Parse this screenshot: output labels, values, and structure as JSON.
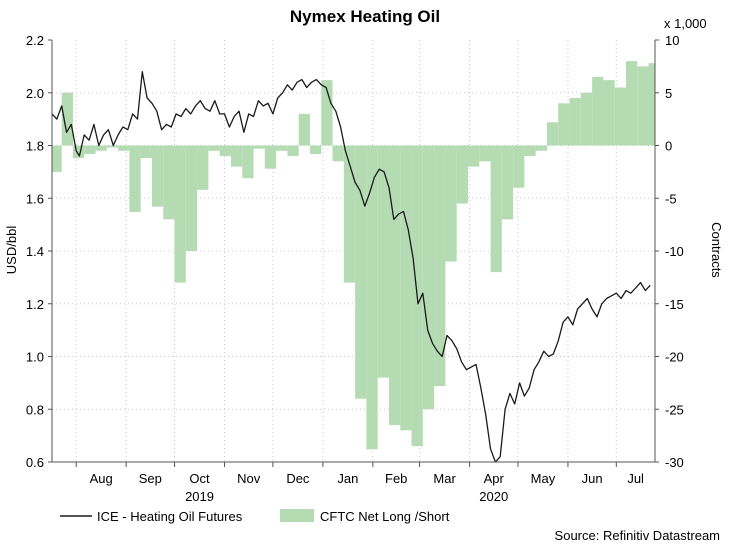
{
  "chart_data": {
    "type": "line",
    "title": "Nymex Heating Oil",
    "source": "Source: Refinitiv Datastream",
    "left_axis": {
      "label": "USD/bbl",
      "range": [
        0.6,
        2.2
      ],
      "ticks": [
        "0.6",
        "0.8",
        "1.0",
        "1.2",
        "1.4",
        "1.6",
        "1.8",
        "2.0",
        "2.2"
      ],
      "tick_values": [
        0.6,
        0.8,
        1.0,
        1.2,
        1.4,
        1.6,
        1.8,
        2.0,
        2.2
      ]
    },
    "right_axis": {
      "label": "Contracts",
      "multiplier_label": "x 1,000",
      "range": [
        -30,
        10
      ],
      "ticks": [
        "-30",
        "-25",
        "-20",
        "-15",
        "-10",
        "-5",
        "0",
        "5",
        "10"
      ],
      "tick_values": [
        -30,
        -25,
        -20,
        -15,
        -10,
        -5,
        0,
        5,
        10
      ]
    },
    "x_axis": {
      "range": [
        "2019-07-17",
        "2020-07-25"
      ],
      "months": [
        {
          "label": "Aug",
          "date": "2019-08"
        },
        {
          "label": "Sep",
          "date": "2019-09"
        },
        {
          "label": "Oct",
          "date": "2019-10"
        },
        {
          "label": "Nov",
          "date": "2019-11"
        },
        {
          "label": "Dec",
          "date": "2019-12"
        },
        {
          "label": "Jan",
          "date": "2020-01"
        },
        {
          "label": "Feb",
          "date": "2020-02"
        },
        {
          "label": "Mar",
          "date": "2020-03"
        },
        {
          "label": "Apr",
          "date": "2020-04"
        },
        {
          "label": "May",
          "date": "2020-05"
        },
        {
          "label": "Jun",
          "date": "2020-06"
        },
        {
          "label": "Jul",
          "date": "2020-07"
        }
      ],
      "years": [
        {
          "label": "2019",
          "date": "2019-10"
        },
        {
          "label": "2020",
          "date": "2020-04"
        }
      ]
    },
    "grid": true,
    "legend_position": "bottom-left",
    "series": [
      {
        "name": "ICE - Heating Oil Futures",
        "kind": "line",
        "axis": "left",
        "color": "#1a1a1a",
        "x": [
          "2019-07-17",
          "2019-07-20",
          "2019-07-23",
          "2019-07-26",
          "2019-07-29",
          "2019-08-01",
          "2019-08-03",
          "2019-08-06",
          "2019-08-09",
          "2019-08-12",
          "2019-08-15",
          "2019-08-18",
          "2019-08-21",
          "2019-08-24",
          "2019-08-27",
          "2019-08-30",
          "2019-09-02",
          "2019-09-05",
          "2019-09-08",
          "2019-09-11",
          "2019-09-14",
          "2019-09-17",
          "2019-09-20",
          "2019-09-23",
          "2019-09-26",
          "2019-09-29",
          "2019-10-02",
          "2019-10-05",
          "2019-10-08",
          "2019-10-11",
          "2019-10-14",
          "2019-10-17",
          "2019-10-20",
          "2019-10-23",
          "2019-10-26",
          "2019-10-29",
          "2019-11-01",
          "2019-11-04",
          "2019-11-07",
          "2019-11-10",
          "2019-11-13",
          "2019-11-16",
          "2019-11-19",
          "2019-11-22",
          "2019-11-25",
          "2019-11-28",
          "2019-12-01",
          "2019-12-04",
          "2019-12-07",
          "2019-12-10",
          "2019-12-13",
          "2019-12-16",
          "2019-12-19",
          "2019-12-22",
          "2019-12-25",
          "2019-12-28",
          "2019-12-31",
          "2020-01-03",
          "2020-01-06",
          "2020-01-09",
          "2020-01-12",
          "2020-01-15",
          "2020-01-18",
          "2020-01-21",
          "2020-01-24",
          "2020-01-27",
          "2020-01-30",
          "2020-02-02",
          "2020-02-05",
          "2020-02-08",
          "2020-02-11",
          "2020-02-14",
          "2020-02-17",
          "2020-02-20",
          "2020-02-23",
          "2020-02-26",
          "2020-02-29",
          "2020-03-03",
          "2020-03-06",
          "2020-03-09",
          "2020-03-12",
          "2020-03-15",
          "2020-03-18",
          "2020-03-21",
          "2020-03-24",
          "2020-03-27",
          "2020-03-30",
          "2020-04-02",
          "2020-04-05",
          "2020-04-08",
          "2020-04-11",
          "2020-04-14",
          "2020-04-17",
          "2020-04-20",
          "2020-04-23",
          "2020-04-26",
          "2020-04-29",
          "2020-05-02",
          "2020-05-05",
          "2020-05-08",
          "2020-05-11",
          "2020-05-14",
          "2020-05-17",
          "2020-05-20",
          "2020-05-23",
          "2020-05-26",
          "2020-05-29",
          "2020-06-01",
          "2020-06-04",
          "2020-06-07",
          "2020-06-10",
          "2020-06-13",
          "2020-06-16",
          "2020-06-19",
          "2020-06-22",
          "2020-06-25",
          "2020-06-28",
          "2020-07-01",
          "2020-07-04",
          "2020-07-07",
          "2020-07-10",
          "2020-07-13",
          "2020-07-16",
          "2020-07-19",
          "2020-07-22"
        ],
        "values": [
          1.92,
          1.9,
          1.95,
          1.85,
          1.88,
          1.78,
          1.76,
          1.84,
          1.82,
          1.88,
          1.8,
          1.84,
          1.86,
          1.8,
          1.84,
          1.87,
          1.86,
          1.92,
          1.9,
          2.08,
          1.98,
          1.96,
          1.93,
          1.86,
          1.88,
          1.87,
          1.92,
          1.91,
          1.94,
          1.92,
          1.95,
          1.97,
          1.94,
          1.93,
          1.97,
          1.92,
          1.92,
          1.87,
          1.91,
          1.93,
          1.85,
          1.92,
          1.91,
          1.97,
          1.95,
          1.96,
          1.92,
          1.98,
          2.0,
          2.03,
          2.01,
          2.04,
          2.05,
          2.02,
          2.04,
          2.05,
          2.03,
          2.02,
          1.96,
          1.93,
          1.87,
          1.78,
          1.72,
          1.66,
          1.63,
          1.57,
          1.62,
          1.68,
          1.71,
          1.7,
          1.64,
          1.52,
          1.54,
          1.55,
          1.48,
          1.37,
          1.2,
          1.24,
          1.1,
          1.05,
          1.02,
          1.0,
          1.08,
          1.06,
          1.03,
          0.98,
          0.95,
          0.96,
          0.97,
          0.88,
          0.78,
          0.65,
          0.6,
          0.62,
          0.8,
          0.86,
          0.82,
          0.9,
          0.85,
          0.88,
          0.95,
          0.98,
          1.02,
          1.0,
          1.01,
          1.06,
          1.13,
          1.15,
          1.12,
          1.18,
          1.2,
          1.22,
          1.18,
          1.15,
          1.2,
          1.22,
          1.23,
          1.24,
          1.22,
          1.25,
          1.24,
          1.26,
          1.28,
          1.25,
          1.27
        ]
      },
      {
        "name": "CFTC Net Long /Short",
        "kind": "area",
        "axis": "right",
        "color": "#b5dbb3",
        "x": [
          "2019-07-16",
          "2019-07-23",
          "2019-07-30",
          "2019-08-06",
          "2019-08-13",
          "2019-08-20",
          "2019-08-27",
          "2019-09-03",
          "2019-09-10",
          "2019-09-17",
          "2019-09-24",
          "2019-10-01",
          "2019-10-08",
          "2019-10-15",
          "2019-10-22",
          "2019-10-29",
          "2019-11-05",
          "2019-11-12",
          "2019-11-19",
          "2019-11-26",
          "2019-12-03",
          "2019-12-10",
          "2019-12-17",
          "2019-12-24",
          "2019-12-31",
          "2020-01-07",
          "2020-01-14",
          "2020-01-21",
          "2020-01-28",
          "2020-02-04",
          "2020-02-11",
          "2020-02-18",
          "2020-02-25",
          "2020-03-03",
          "2020-03-10",
          "2020-03-17",
          "2020-03-24",
          "2020-03-31",
          "2020-04-07",
          "2020-04-14",
          "2020-04-21",
          "2020-04-28",
          "2020-05-05",
          "2020-05-12",
          "2020-05-19",
          "2020-05-26",
          "2020-06-02",
          "2020-06-09",
          "2020-06-16",
          "2020-06-23",
          "2020-06-30",
          "2020-07-07",
          "2020-07-14",
          "2020-07-21"
        ],
        "values": [
          -2.5,
          5.0,
          -1.2,
          -0.8,
          -0.5,
          -0.2,
          -0.5,
          -6.3,
          -1.2,
          -5.8,
          -7.0,
          -13.0,
          -10.0,
          -4.2,
          -0.5,
          -1.0,
          -2.0,
          -3.1,
          -0.3,
          -2.2,
          -0.5,
          -1.0,
          3.0,
          -0.8,
          6.2,
          -1.5,
          -13.0,
          -24.0,
          -28.8,
          -22.0,
          -26.5,
          -27.0,
          -28.5,
          -25.0,
          -22.8,
          -11.0,
          -5.5,
          -2.0,
          -1.5,
          -12.0,
          -7.0,
          -4.0,
          -1.0,
          -0.5,
          2.2,
          4.0,
          4.5,
          5.0,
          6.5,
          6.2,
          5.5,
          8.0,
          7.5,
          7.8
        ]
      }
    ]
  }
}
